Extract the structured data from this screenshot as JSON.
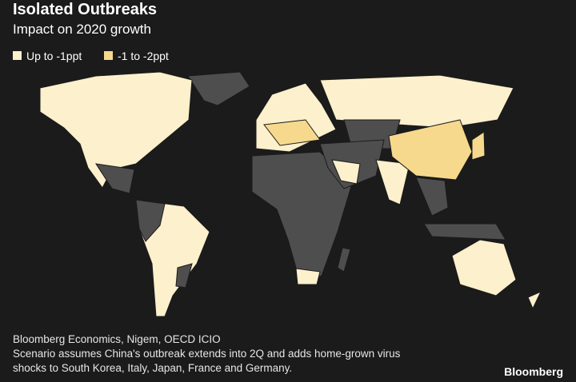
{
  "header": {
    "title": "Isolated Outbreaks",
    "subtitle": "Impact on 2020 growth"
  },
  "legend": [
    {
      "label": "Up to -1ppt",
      "color": "#fdf0cd"
    },
    {
      "label": "-1 to -2ppt",
      "color": "#f6d98c"
    }
  ],
  "footer": {
    "source": "Bloomberg Economics, Nigem, OECD ICIO",
    "note_lines": [
      "Scenario assumes China's outbreak extends into 2Q and adds home-grown virus",
      "shocks to South Korea, Italy, Japan, France and Germany."
    ],
    "brand": "Bloomberg"
  }
}
